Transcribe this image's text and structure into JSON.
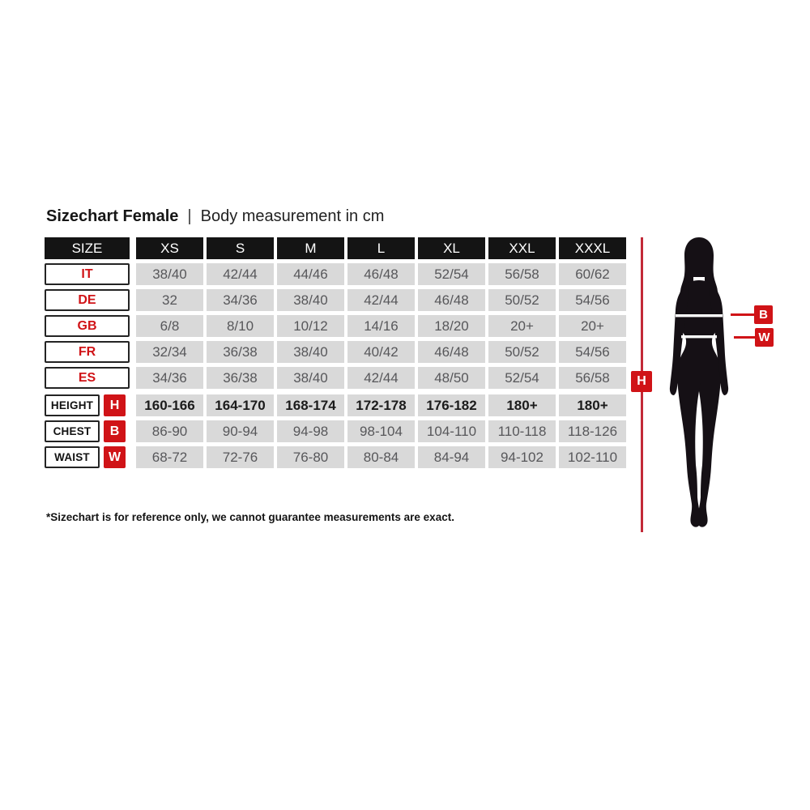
{
  "title": {
    "bold": "Sizechart Female",
    "separator": "|",
    "regular": "Body measurement in cm"
  },
  "table": {
    "header": [
      "SIZE",
      "XS",
      "S",
      "M",
      "L",
      "XL",
      "XXL",
      "XXXL"
    ],
    "country_rows": [
      {
        "label": "IT",
        "values": [
          "38/40",
          "42/44",
          "44/46",
          "46/48",
          "52/54",
          "56/58",
          "60/62"
        ]
      },
      {
        "label": "DE",
        "values": [
          "32",
          "34/36",
          "38/40",
          "42/44",
          "46/48",
          "50/52",
          "54/56"
        ]
      },
      {
        "label": "GB",
        "values": [
          "6/8",
          "8/10",
          "10/12",
          "14/16",
          "18/20",
          "20+",
          "20+"
        ]
      },
      {
        "label": "FR",
        "values": [
          "32/34",
          "36/38",
          "38/40",
          "40/42",
          "46/48",
          "50/52",
          "54/56"
        ]
      },
      {
        "label": "ES",
        "values": [
          "34/36",
          "36/38",
          "38/40",
          "42/44",
          "48/50",
          "52/54",
          "56/58"
        ]
      }
    ],
    "measurement_rows": [
      {
        "label": "HEIGHT",
        "badge": "H",
        "bold": true,
        "values": [
          "160-166",
          "164-170",
          "168-174",
          "172-178",
          "176-182",
          "180+",
          "180+"
        ]
      },
      {
        "label": "CHEST",
        "badge": "B",
        "bold": false,
        "values": [
          "86-90",
          "90-94",
          "94-98",
          "98-104",
          "104-110",
          "110-118",
          "118-126"
        ]
      },
      {
        "label": "WAIST",
        "badge": "W",
        "bold": false,
        "values": [
          "68-72",
          "72-76",
          "76-80",
          "80-84",
          "84-94",
          "94-102",
          "102-110"
        ]
      }
    ]
  },
  "figure": {
    "height_label": "H",
    "bust_label": "B",
    "waist_label": "W"
  },
  "footnote": "*Sizechart is for reference only, we cannot guarantee measurements are exact.",
  "colors": {
    "red": "#d01317",
    "height_line_red": "#c22a38",
    "header_bg": "#141414",
    "cell_bg": "#d9d9d9",
    "cell_text": "#57575a",
    "silhouette": "#151015"
  }
}
